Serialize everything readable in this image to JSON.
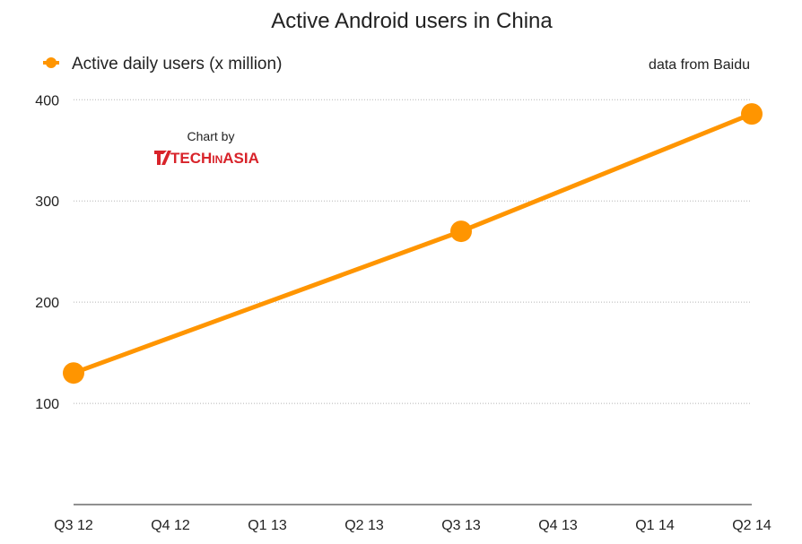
{
  "chart_data": {
    "type": "line",
    "title": "Active Android users in China",
    "source_note": "data from Baidu",
    "credit": {
      "label": "Chart by",
      "logo": {
        "part1": "TECH",
        "part2": "IN",
        "part3": "ASIA",
        "color": "#d8232a"
      }
    },
    "categories": [
      "Q3 12",
      "Q4 12",
      "Q1 13",
      "Q2 13",
      "Q3 13",
      "Q4 13",
      "Q1 14",
      "Q2 14"
    ],
    "y_ticks": [
      100,
      200,
      300,
      400
    ],
    "ylim": [
      0,
      410
    ],
    "grid": true,
    "legend_position": "top-left",
    "series": [
      {
        "name": "Active daily users (x million)",
        "color": "#ff9500",
        "points": [
          {
            "x": "Q3 12",
            "y": 130
          },
          {
            "x": "Q3 13",
            "y": 270
          },
          {
            "x": "Q2 14",
            "y": 386
          }
        ]
      }
    ]
  }
}
